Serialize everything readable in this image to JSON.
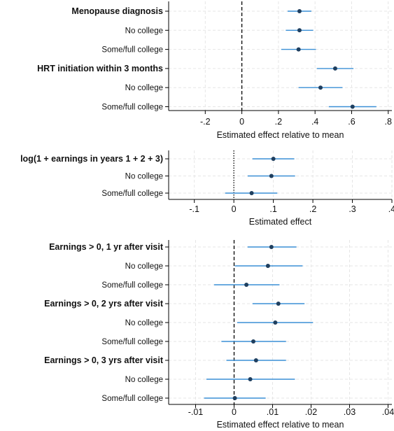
{
  "colors": {
    "ci_line": "#3a8fd6",
    "point": "#1f3f5f",
    "grid": "#e6e6e6",
    "axis": "#000000",
    "zero_line": "#000000"
  },
  "chart_data": [
    {
      "type": "scatter",
      "style": "coefficient-plot",
      "orientation": "horizontal",
      "xlabel": "Estimated effect relative to mean",
      "xlim": [
        -0.4,
        0.82
      ],
      "xticks": [
        {
          "value": -0.2,
          "label": "-.2"
        },
        {
          "value": 0,
          "label": "0"
        },
        {
          "value": 0.2,
          "label": ".2"
        },
        {
          "value": 0.4,
          "label": ".4"
        },
        {
          "value": 0.6,
          "label": ".6"
        },
        {
          "value": 0.8,
          "label": ".8"
        }
      ],
      "zero_line": "dashed",
      "grid": true,
      "rows": [
        {
          "label": "Menopause diagnosis",
          "bold": true,
          "estimate": 0.315,
          "ci": [
            0.25,
            0.38
          ]
        },
        {
          "label": "No college",
          "bold": false,
          "estimate": 0.315,
          "ci": [
            0.24,
            0.39
          ]
        },
        {
          "label": "Some/full college",
          "bold": false,
          "estimate": 0.31,
          "ci": [
            0.215,
            0.405
          ]
        },
        {
          "label": "HRT initiation within 3 months",
          "bold": true,
          "estimate": 0.51,
          "ci": [
            0.41,
            0.61
          ]
        },
        {
          "label": "No college",
          "bold": false,
          "estimate": 0.43,
          "ci": [
            0.31,
            0.55
          ]
        },
        {
          "label": "Some/full college",
          "bold": false,
          "estimate": 0.605,
          "ci": [
            0.475,
            0.735
          ]
        }
      ]
    },
    {
      "type": "scatter",
      "style": "coefficient-plot",
      "orientation": "horizontal",
      "xlabel": "Estimated effect",
      "xlim": [
        -0.165,
        0.4
      ],
      "xticks": [
        {
          "value": -0.1,
          "label": "-.1"
        },
        {
          "value": 0,
          "label": "0"
        },
        {
          "value": 0.1,
          "label": ".1"
        },
        {
          "value": 0.2,
          "label": ".2"
        },
        {
          "value": 0.3,
          "label": ".3"
        },
        {
          "value": 0.4,
          "label": ".4"
        }
      ],
      "zero_line": "dotted",
      "grid": true,
      "rows": [
        {
          "label": "log(1 + earnings in years 1 + 2 + 3)",
          "bold": true,
          "estimate": 0.1,
          "ci": [
            0.047,
            0.153
          ]
        },
        {
          "label": "No college",
          "bold": false,
          "estimate": 0.095,
          "ci": [
            0.035,
            0.155
          ]
        },
        {
          "label": "Some/full college",
          "bold": false,
          "estimate": 0.045,
          "ci": [
            -0.022,
            0.11
          ]
        }
      ]
    },
    {
      "type": "scatter",
      "style": "coefficient-plot",
      "orientation": "horizontal",
      "xlabel": "Estimated effect relative to mean",
      "xlim": [
        -0.017,
        0.041
      ],
      "xticks": [
        {
          "value": -0.01,
          "label": "-.01"
        },
        {
          "value": 0,
          "label": "0"
        },
        {
          "value": 0.01,
          "label": ".01"
        },
        {
          "value": 0.02,
          "label": ".02"
        },
        {
          "value": 0.03,
          "label": ".03"
        },
        {
          "value": 0.04,
          "label": ".04"
        }
      ],
      "zero_line": "dashed",
      "grid": true,
      "rows": [
        {
          "label": "Earnings > 0, 1 yr after visit",
          "bold": true,
          "estimate": 0.0097,
          "ci": [
            0.0035,
            0.0162
          ]
        },
        {
          "label": "No college",
          "bold": false,
          "estimate": 0.0088,
          "ci": [
            0.0002,
            0.0178
          ]
        },
        {
          "label": "Some/full college",
          "bold": false,
          "estimate": 0.0032,
          "ci": [
            -0.0052,
            0.0118
          ]
        },
        {
          "label": "Earnings > 0, 2 yrs after visit",
          "bold": true,
          "estimate": 0.0115,
          "ci": [
            0.0048,
            0.0183
          ]
        },
        {
          "label": "No college",
          "bold": false,
          "estimate": 0.0107,
          "ci": [
            0.0008,
            0.0205
          ]
        },
        {
          "label": "Some/full college",
          "bold": false,
          "estimate": 0.005,
          "ci": [
            -0.0033,
            0.0135
          ]
        },
        {
          "label": "Earnings > 0, 3 yrs after visit",
          "bold": true,
          "estimate": 0.0057,
          "ci": [
            -0.002,
            0.0135
          ]
        },
        {
          "label": "No college",
          "bold": false,
          "estimate": 0.0042,
          "ci": [
            -0.0072,
            0.0158
          ]
        },
        {
          "label": "Some/full college",
          "bold": false,
          "estimate": 0.0002,
          "ci": [
            -0.0078,
            0.0082
          ]
        }
      ]
    }
  ]
}
